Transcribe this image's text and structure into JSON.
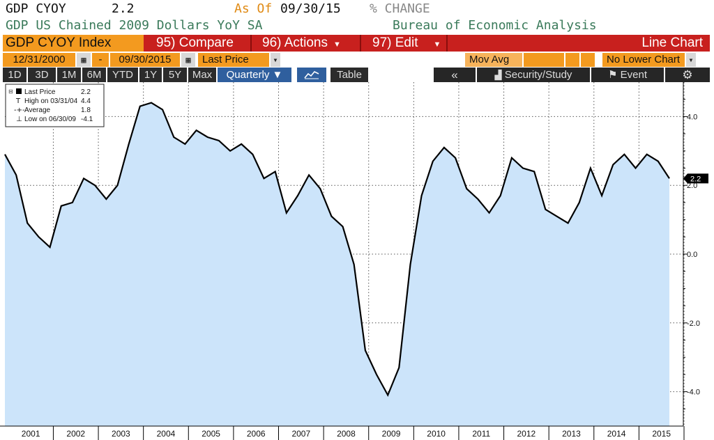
{
  "header": {
    "ticker_label": "GDP CYOY",
    "last_value": "2.2",
    "as_of_label": "As Of",
    "as_of_date": "09/30/15",
    "change_label": "% CHANGE",
    "description": "GDP US Chained 2009 Dollars YoY SA",
    "source": "Bureau of Economic Analysis"
  },
  "menu_bar": {
    "security": "GDP CYOY Index",
    "compare": "95) Compare",
    "actions": "96) Actions",
    "edit": "97) Edit",
    "chart_type": "Line Chart"
  },
  "date_row": {
    "start_date": "12/31/2000",
    "dash": "-",
    "end_date": "09/30/2015",
    "field": "Last Price",
    "mov_avg": "Mov Avg",
    "lower_chart": "No Lower Chart"
  },
  "range_row": {
    "ranges": [
      "1D",
      "3D",
      "1M",
      "6M",
      "YTD",
      "1Y",
      "5Y",
      "Max"
    ],
    "frequency": "Quarterly ▼",
    "table_label": "Table",
    "collapse_label": "«",
    "security_study": "Security/Study",
    "event": "Event",
    "settings_icon": "gear-icon",
    "chart_icon": "line-chart-icon"
  },
  "legend": {
    "last_price": {
      "label": "Last Price",
      "value": "2.2"
    },
    "high": {
      "label": "High on 03/31/04",
      "value": "4.4"
    },
    "average": {
      "label": "Average",
      "value": "1.8"
    },
    "low": {
      "label": "Low on 06/30/09",
      "value": "-4.1"
    }
  },
  "colors": {
    "area_fill": "#cce4fa",
    "line": "#000000",
    "orange": "#f39a1f",
    "red": "#c8201e",
    "header_green": "#3a7a5a",
    "as_of_orange": "#e08a14"
  },
  "chart_data": {
    "type": "area",
    "series": [
      {
        "name": "Last Price",
        "values": [
          2.9,
          2.3,
          0.9,
          0.5,
          0.2,
          1.4,
          1.5,
          2.2,
          2.0,
          1.6,
          2.0,
          3.2,
          4.3,
          4.4,
          4.2,
          3.4,
          3.2,
          3.6,
          3.4,
          3.3,
          3.0,
          3.2,
          2.9,
          2.2,
          2.4,
          1.2,
          1.7,
          2.3,
          1.9,
          1.1,
          0.8,
          -0.3,
          -2.8,
          -3.5,
          -4.1,
          -3.3,
          -0.3,
          1.7,
          2.7,
          3.1,
          2.8,
          1.9,
          1.6,
          1.2,
          1.7,
          2.8,
          2.5,
          2.4,
          1.3,
          1.1,
          0.9,
          1.5,
          2.5,
          1.7,
          2.6,
          2.9,
          2.5,
          2.9,
          2.7,
          2.2
        ]
      }
    ],
    "x_start": "2000 Q4",
    "x_end": "2015 Q3",
    "frequency": "Quarterly",
    "x_tick_labels": [
      "2001",
      "2002",
      "2003",
      "2004",
      "2005",
      "2006",
      "2007",
      "2008",
      "2009",
      "2010",
      "2011",
      "2012",
      "2013",
      "2014",
      "2015"
    ],
    "y_tick_labels": [
      "4.0",
      "2.0",
      "0.0",
      "-2.0",
      "-4.0"
    ],
    "ylim": [
      -5.0,
      5.0
    ],
    "last_value_label": "2.2",
    "grid": true,
    "legend_position": "top-left",
    "y_axis_side": "right"
  }
}
